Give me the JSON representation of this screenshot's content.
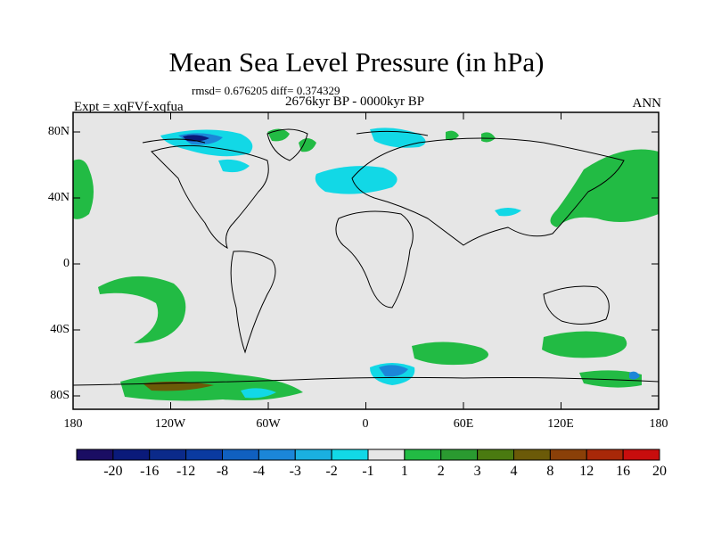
{
  "title": "Mean Sea Level Pressure (in hPa)",
  "stats": "rmsd= 0.676205 diff= 0.374329",
  "period": "2676kyr BP - 0000kyr BP",
  "experiment": "Expt = xqFVf-xqfua",
  "season": "ANN",
  "map": {
    "lat_labels": [
      "80N",
      "40N",
      "0",
      "40S",
      "80S"
    ],
    "lon_labels": [
      "180",
      "120W",
      "60W",
      "0",
      "60E",
      "120E",
      "180"
    ],
    "background_color": "#e6e6e6"
  },
  "colorbar": {
    "labels": [
      "-20",
      "-16",
      "-12",
      "-8",
      "-4",
      "-3",
      "-2",
      "-1",
      "1",
      "2",
      "3",
      "4",
      "8",
      "12",
      "16",
      "20"
    ],
    "colors": [
      "#1a0d63",
      "#0a1a7a",
      "#0b2a8a",
      "#0a3aa0",
      "#1060c0",
      "#1b86d8",
      "#1ab0e0",
      "#12d8e6",
      "#e6e6e6",
      "#22bb44",
      "#2a9a30",
      "#4a7a10",
      "#6b5a08",
      "#8a4008",
      "#a82808",
      "#c80d0d"
    ]
  }
}
